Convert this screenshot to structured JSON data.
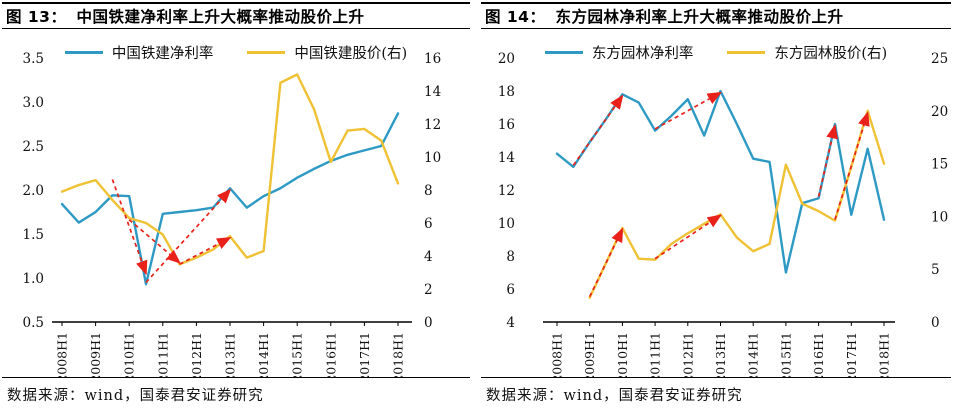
{
  "source_note": "数据来源：wind，国泰君安证券研究",
  "colors": {
    "net_margin_line": "#2E9AC4",
    "stock_price_line": "#EFC134",
    "trend_arrow": "#E8211A",
    "axis_line": "#000000",
    "text": "#111111"
  },
  "chart_data": [
    {
      "type": "line",
      "title_label": "图 13：",
      "title": "中国铁建净利率上升大概率推动股价上升",
      "categories": [
        "2008H1",
        "2008H2",
        "2009H1",
        "2009H2",
        "2010H1",
        "2010H2",
        "2011H1",
        "2011H2",
        "2012H1",
        "2012H2",
        "2013H1",
        "2013H2",
        "2014H1",
        "2014H2",
        "2015H1",
        "2015H2",
        "2016H1",
        "2016H2",
        "2017H1",
        "2017H2",
        "2018H1"
      ],
      "x_tick_labels": [
        "2008H1",
        "2009H1",
        "2010H1",
        "2011H1",
        "2012H1",
        "2013H1",
        "2014H1",
        "2015H1",
        "2016H1",
        "2017H1",
        "2018H1"
      ],
      "left_axis": {
        "min": 0.5,
        "max": 3.5,
        "ticks": [
          "3.5",
          "3.0",
          "2.5",
          "2.0",
          "1.5",
          "1.0",
          "0.5"
        ]
      },
      "right_axis": {
        "min": 0,
        "max": 16,
        "ticks": [
          "16",
          "14",
          "12",
          "10",
          "8",
          "6",
          "4",
          "2",
          "0"
        ]
      },
      "legend_position": "top",
      "grid": false,
      "series": [
        {
          "name": "中国铁建净利率",
          "axis": "left",
          "color": "#2E9AC4",
          "values": [
            1.84,
            1.63,
            1.75,
            1.94,
            1.93,
            0.93,
            1.73,
            1.75,
            1.77,
            1.8,
            2.02,
            1.8,
            1.93,
            2.02,
            2.14,
            2.24,
            2.33,
            2.4,
            2.45,
            2.5,
            2.87
          ]
        },
        {
          "name": "中国铁建股价(右)",
          "axis": "right",
          "color": "#EFC134",
          "values": [
            7.9,
            8.3,
            8.6,
            7.4,
            6.3,
            6.0,
            5.3,
            3.5,
            3.9,
            4.4,
            5.2,
            3.9,
            4.3,
            14.5,
            15.0,
            12.9,
            9.7,
            11.6,
            11.7,
            11.0,
            8.4
          ]
        }
      ],
      "arrows": [
        {
          "axis": "left",
          "from": [
            "2009H2",
            2.12
          ],
          "to": [
            "2010H2",
            1.05
          ]
        },
        {
          "axis": "left",
          "from": [
            "2010H2",
            0.95
          ],
          "to": [
            "2013H1",
            2.0
          ]
        },
        {
          "axis": "right",
          "from": [
            "2010H1",
            6.2
          ],
          "to": [
            "2011H2",
            3.6
          ]
        },
        {
          "axis": "right",
          "from": [
            "2011H2",
            3.5
          ],
          "to": [
            "2013H1",
            5.1
          ]
        }
      ]
    },
    {
      "type": "line",
      "title_label": "图 14：",
      "title": "东方园林净利率上升大概率推动股价上升",
      "categories": [
        "2008H1",
        "2008H2",
        "2009H1",
        "2009H2",
        "2010H1",
        "2010H2",
        "2011H1",
        "2011H2",
        "2012H1",
        "2012H2",
        "2013H1",
        "2013H2",
        "2014H1",
        "2014H2",
        "2015H1",
        "2015H2",
        "2016H1",
        "2016H2",
        "2017H1",
        "2017H2",
        "2018H1"
      ],
      "x_tick_labels": [
        "2008H1",
        "2009H1",
        "2010H1",
        "2011H1",
        "2012H1",
        "2013H1",
        "2014H1",
        "2015H1",
        "2016H1",
        "2017H1",
        "2018H1"
      ],
      "left_axis": {
        "min": 4,
        "max": 20,
        "ticks": [
          "20",
          "18",
          "16",
          "14",
          "12",
          "10",
          "8",
          "6",
          "4"
        ]
      },
      "right_axis": {
        "min": 0,
        "max": 25,
        "ticks": [
          "25",
          "20",
          "15",
          "10",
          "5",
          "0"
        ]
      },
      "legend_position": "top",
      "grid": false,
      "series": [
        {
          "name": "东方园林净利率",
          "axis": "left",
          "color": "#2E9AC4",
          "values": [
            14.2,
            13.4,
            14.9,
            16.3,
            17.8,
            17.3,
            15.6,
            16.5,
            17.5,
            15.3,
            18.0,
            16.0,
            13.9,
            13.7,
            7.0,
            11.2,
            11.5,
            16.0,
            10.5,
            14.5,
            10.2
          ]
        },
        {
          "name": "东方园林股价(右)",
          "axis": "right",
          "color": "#EFC134",
          "values": [
            null,
            null,
            2.3,
            5.6,
            8.9,
            6.0,
            5.9,
            7.4,
            8.4,
            9.3,
            10.2,
            8.0,
            6.7,
            7.4,
            14.9,
            11.2,
            10.5,
            9.6,
            14.7,
            20.0,
            15.0
          ]
        }
      ],
      "arrows": [
        {
          "axis": "left",
          "from": [
            "2008H2",
            13.5
          ],
          "to": [
            "2010H1",
            17.7
          ]
        },
        {
          "axis": "left",
          "from": [
            "2011H1",
            15.7
          ],
          "to": [
            "2013H1",
            17.9
          ]
        },
        {
          "axis": "left",
          "from": [
            "2016H1",
            11.6
          ],
          "to": [
            "2016H2",
            15.9
          ]
        },
        {
          "axis": "right",
          "from": [
            "2009H1",
            2.4
          ],
          "to": [
            "2010H1",
            8.8
          ]
        },
        {
          "axis": "right",
          "from": [
            "2011H1",
            6.0
          ],
          "to": [
            "2013H1",
            10.1
          ]
        },
        {
          "axis": "right",
          "from": [
            "2016H2",
            9.7
          ],
          "to": [
            "2017H2",
            19.8
          ]
        }
      ]
    }
  ]
}
